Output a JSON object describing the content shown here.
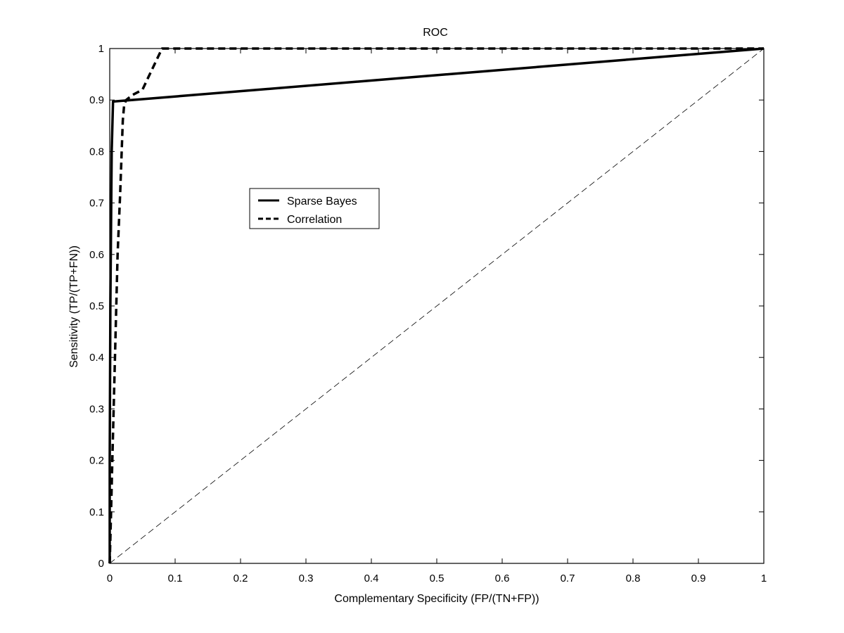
{
  "chart_data": {
    "type": "line",
    "title": "ROC",
    "xlabel": "Complementary Specificity (FP/(TN+FP))",
    "ylabel": "Sensitivity (TP/(TP+FN))",
    "xlim": [
      0,
      1
    ],
    "ylim": [
      0,
      1
    ],
    "xticks": [
      "0",
      "0.1",
      "0.2",
      "0.3",
      "0.4",
      "0.5",
      "0.6",
      "0.7",
      "0.8",
      "0.9",
      "1"
    ],
    "yticks": [
      "0",
      "0.1",
      "0.2",
      "0.3",
      "0.4",
      "0.5",
      "0.6",
      "0.7",
      "0.8",
      "0.9",
      "1"
    ],
    "grid": false,
    "legend_position": "upper-left-center",
    "series": [
      {
        "name": "Sparse Bayes",
        "style": "solid",
        "color": "#000000",
        "x": [
          0,
          0.0,
          0.001,
          0.003,
          0.005,
          1.0
        ],
        "y": [
          0,
          0.2,
          0.5,
          0.8,
          0.897,
          1.0
        ]
      },
      {
        "name": "Correlation",
        "style": "dashed",
        "color": "#000000",
        "x": [
          0,
          0.002,
          0.004,
          0.006,
          0.009,
          0.012,
          0.016,
          0.02,
          0.022,
          0.025,
          0.035,
          0.05,
          0.065,
          0.08,
          0.1,
          1.0
        ],
        "y": [
          0,
          0.1,
          0.2,
          0.3,
          0.45,
          0.6,
          0.72,
          0.86,
          0.89,
          0.9,
          0.91,
          0.92,
          0.96,
          1.0,
          1.0,
          1.0
        ]
      },
      {
        "name": "",
        "style": "thin-dashed",
        "color": "#000000",
        "x": [
          0,
          1
        ],
        "y": [
          0,
          1
        ]
      }
    ]
  }
}
